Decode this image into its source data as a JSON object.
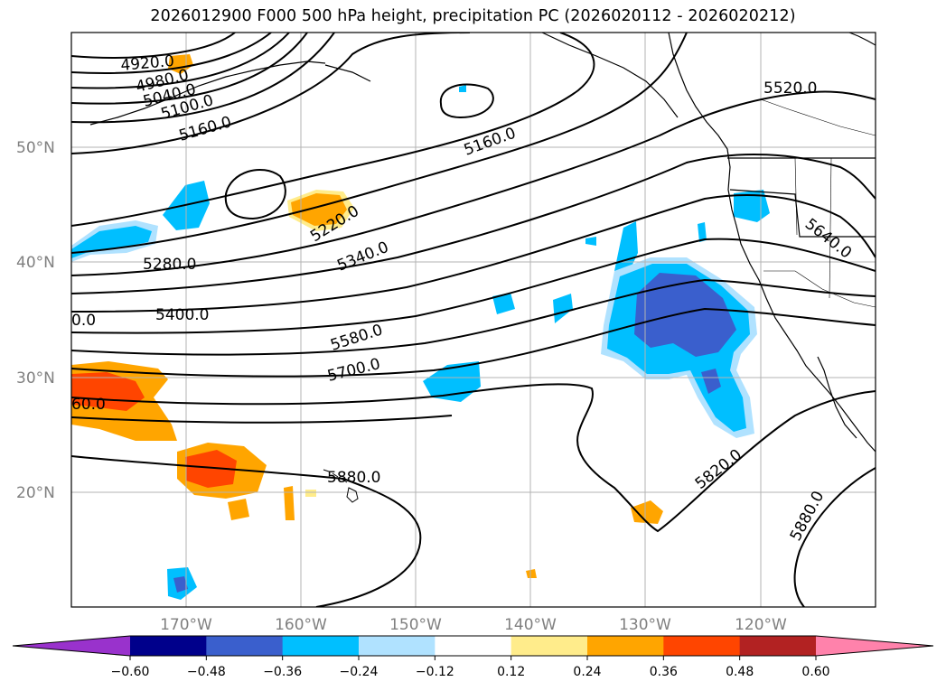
{
  "title": "2026012900 F000 500 hPa height, precipitation PC (2026020112 - 2026020212)",
  "lat_labels": [
    "50°N",
    "40°N",
    "30°N",
    "20°N"
  ],
  "lon_labels": [
    "170°W",
    "160°W",
    "150°W",
    "140°W",
    "130°W",
    "120°W"
  ],
  "contour_labels": [
    "4920.0",
    "4980.0",
    "5040.0",
    "5100.0",
    "5160.0",
    "5160.0",
    "5220.0",
    "5280.0",
    "5340.0",
    "5400.0",
    "0.0",
    "5520.0",
    "5580.0",
    "5640.0",
    "5700.0",
    "60.0",
    "5820.0",
    "5880.0",
    "5880.0"
  ],
  "colorbar": {
    "ticks": [
      "−0.60",
      "−0.48",
      "−0.36",
      "−0.24",
      "−0.12",
      "0.12",
      "0.24",
      "0.36",
      "0.48",
      "0.60"
    ],
    "colors": [
      "#9932cc",
      "#00008b",
      "#3a5fcd",
      "#00bfff",
      "#b0e2ff",
      "#ffffff",
      "#ffec8b",
      "#ffa500",
      "#ff4500",
      "#b22222",
      "#ff82ab"
    ]
  }
}
